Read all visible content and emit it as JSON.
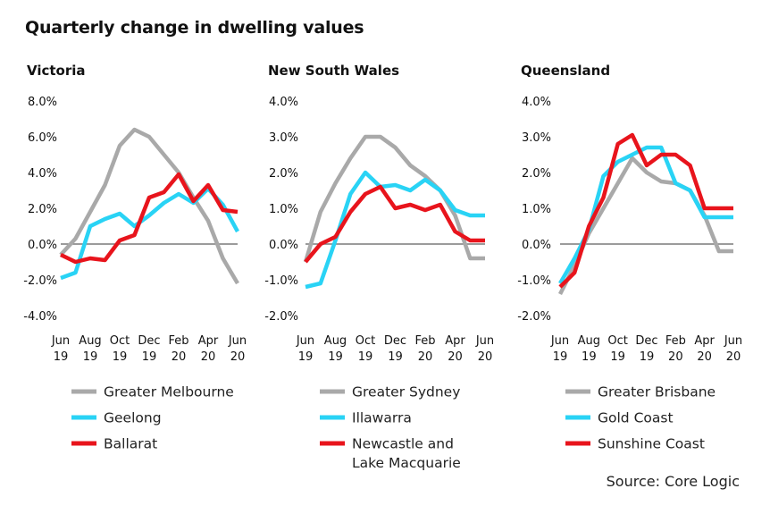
{
  "title": "Quarterly change in dwelling values",
  "source": "Source: Core Logic",
  "chart_data": [
    {
      "type": "line",
      "title": "Victoria",
      "ylim": [
        -4,
        8
      ],
      "yticks": [
        -4,
        -2,
        0,
        2,
        4,
        6,
        8
      ],
      "ytick_labels": [
        "-4.0%",
        "-2.0%",
        "0.0%",
        "2.0%",
        "4.0%",
        "6.0%",
        "8.0%"
      ],
      "x": [
        "Jun 19",
        "Jul 19",
        "Aug 19",
        "Sep 19",
        "Oct 19",
        "Nov 19",
        "Dec 19",
        "Jan 20",
        "Feb 20",
        "Mar 20",
        "Apr 20",
        "May 20",
        "Jun 20"
      ],
      "xtick_labels": [
        [
          "Jun",
          "19"
        ],
        [
          "Aug",
          "19"
        ],
        [
          "Oct",
          "19"
        ],
        [
          "Dec",
          "19"
        ],
        [
          "Feb",
          "20"
        ],
        [
          "Apr",
          "20"
        ],
        [
          "Jun",
          "20"
        ]
      ],
      "series": [
        {
          "name": "Greater Melbourne",
          "color": "#a9a9a9",
          "values": [
            -0.6,
            0.3,
            1.8,
            3.3,
            5.5,
            6.4,
            6.0,
            5.0,
            4.0,
            2.6,
            1.3,
            -0.8,
            -2.2
          ]
        },
        {
          "name": "Geelong",
          "color": "#29d3f5",
          "values": [
            -1.9,
            -1.6,
            1.0,
            1.4,
            1.7,
            1.0,
            1.6,
            2.3,
            2.8,
            2.3,
            3.1,
            2.2,
            0.7
          ]
        },
        {
          "name": "Ballarat",
          "color": "#e8141c",
          "values": [
            -0.6,
            -1.0,
            -0.8,
            -0.9,
            0.2,
            0.5,
            2.6,
            2.9,
            3.9,
            2.4,
            3.3,
            1.9,
            1.8
          ]
        }
      ]
    },
    {
      "type": "line",
      "title": "New South Wales",
      "ylim": [
        -2,
        4
      ],
      "yticks": [
        -2,
        -1,
        0,
        1,
        2,
        3,
        4
      ],
      "ytick_labels": [
        "-2.0%",
        "-1.0%",
        "0.0%",
        "1.0%",
        "2.0%",
        "3.0%",
        "4.0%"
      ],
      "x": [
        "Jun 19",
        "Jul 19",
        "Aug 19",
        "Sep 19",
        "Oct 19",
        "Nov 19",
        "Dec 19",
        "Jan 20",
        "Feb 20",
        "Mar 20",
        "Apr 20",
        "May 20",
        "Jun 20"
      ],
      "xtick_labels": [
        [
          "Jun",
          "19"
        ],
        [
          "Aug",
          "19"
        ],
        [
          "Oct",
          "19"
        ],
        [
          "Dec",
          "19"
        ],
        [
          "Feb",
          "20"
        ],
        [
          "Apr",
          "20"
        ],
        [
          "Jun",
          "20"
        ]
      ],
      "series": [
        {
          "name": "Greater Sydney",
          "color": "#a9a9a9",
          "values": [
            -0.5,
            0.9,
            1.7,
            2.4,
            3.0,
            3.0,
            2.7,
            2.2,
            1.9,
            1.5,
            0.8,
            -0.4,
            -0.4
          ]
        },
        {
          "name": "Illawarra",
          "color": "#29d3f5",
          "values": [
            -1.2,
            -1.1,
            0.1,
            1.4,
            2.0,
            1.6,
            1.65,
            1.5,
            1.8,
            1.5,
            0.95,
            0.8,
            0.8
          ]
        },
        {
          "name": "Newcastle and Lake Macquarie",
          "color": "#e8141c",
          "values": [
            -0.5,
            0.0,
            0.2,
            0.9,
            1.4,
            1.6,
            1.0,
            1.1,
            0.95,
            1.1,
            0.35,
            0.1,
            0.1
          ]
        }
      ]
    },
    {
      "type": "line",
      "title": "Queensland",
      "ylim": [
        -2,
        4
      ],
      "yticks": [
        -2,
        -1,
        0,
        1,
        2,
        3,
        4
      ],
      "ytick_labels": [
        "-2.0%",
        "-1.0%",
        "0.0%",
        "1.0%",
        "2.0%",
        "3.0%",
        "4.0%"
      ],
      "x": [
        "Jun 19",
        "Jul 19",
        "Aug 19",
        "Sep 19",
        "Oct 19",
        "Nov 19",
        "Dec 19",
        "Jan 20",
        "Feb 20",
        "Mar 20",
        "Apr 20",
        "May 20",
        "Jun 20"
      ],
      "xtick_labels": [
        [
          "Jun",
          "19"
        ],
        [
          "Aug",
          "19"
        ],
        [
          "Oct",
          "19"
        ],
        [
          "Dec",
          "19"
        ],
        [
          "Feb",
          "20"
        ],
        [
          "Apr",
          "20"
        ],
        [
          "Jun",
          "20"
        ]
      ],
      "series": [
        {
          "name": "Greater Brisbane",
          "color": "#a9a9a9",
          "values": [
            -1.4,
            -0.6,
            0.3,
            1.0,
            1.7,
            2.4,
            2.0,
            1.75,
            1.7,
            1.5,
            0.8,
            -0.2,
            -0.2
          ]
        },
        {
          "name": "Gold Coast",
          "color": "#29d3f5",
          "values": [
            -1.1,
            -0.4,
            0.4,
            1.9,
            2.3,
            2.5,
            2.7,
            2.7,
            1.7,
            1.5,
            0.75,
            0.75,
            0.75
          ]
        },
        {
          "name": "Sunshine Coast",
          "color": "#e8141c",
          "values": [
            -1.2,
            -0.8,
            0.5,
            1.3,
            2.8,
            3.05,
            2.2,
            2.5,
            2.5,
            2.2,
            1.0,
            1.0,
            1.0
          ]
        }
      ]
    }
  ]
}
